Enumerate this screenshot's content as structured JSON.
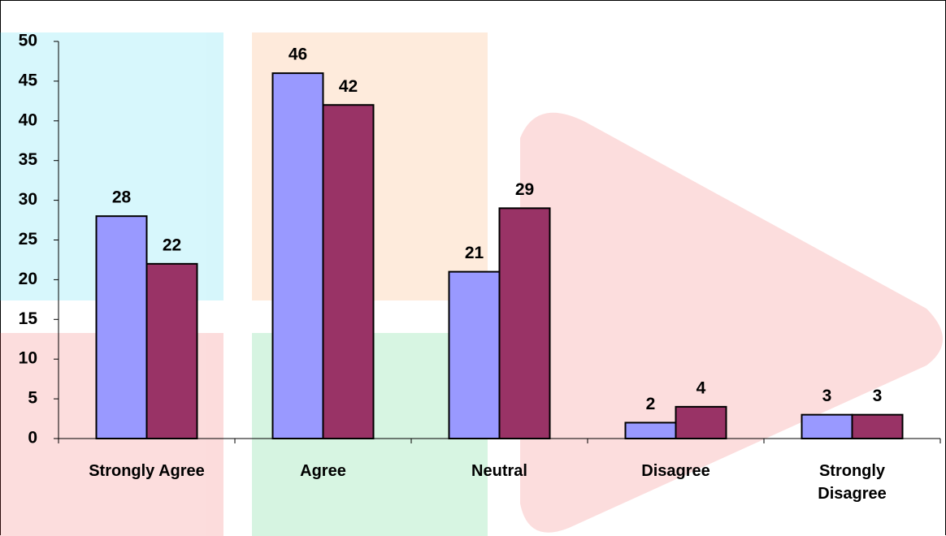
{
  "chart_data": {
    "type": "bar",
    "categories": [
      "Strongly Agree",
      "Agree",
      "Neutral",
      "Disagree",
      "Strongly Disagree"
    ],
    "series": [
      {
        "color": "#9999ff",
        "values": [
          28,
          46,
          21,
          2,
          3
        ]
      },
      {
        "color": "#993366",
        "values": [
          22,
          42,
          29,
          4,
          3
        ]
      }
    ],
    "ylim": [
      0,
      50
    ],
    "yticks": [
      0,
      5,
      10,
      15,
      20,
      25,
      30,
      35,
      40,
      45,
      50
    ],
    "grid": false
  }
}
